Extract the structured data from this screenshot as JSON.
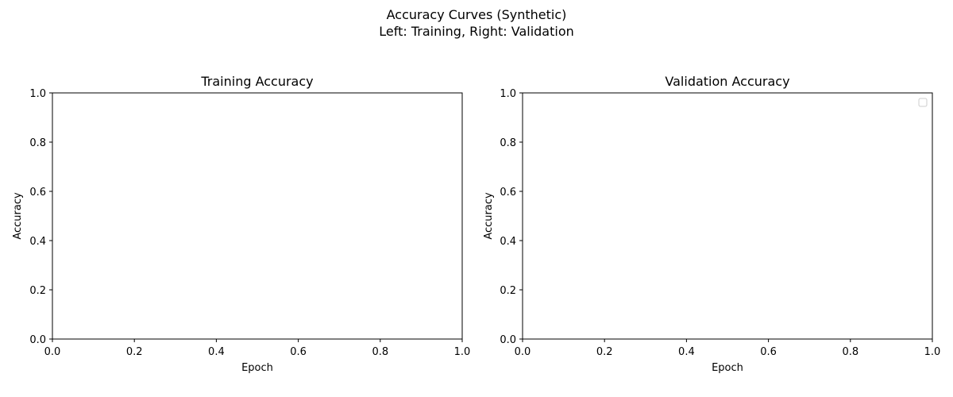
{
  "figure": {
    "suptitle_line1": "Accuracy Curves (Synthetic)",
    "suptitle_line2": "Left: Training, Right: Validation"
  },
  "chart_data": [
    {
      "type": "line",
      "title": "Training Accuracy",
      "xlabel": "Epoch",
      "ylabel": "Accuracy",
      "xlim": [
        0,
        1
      ],
      "ylim": [
        0,
        1
      ],
      "xticks": [
        "0.0",
        "0.2",
        "0.4",
        "0.6",
        "0.8",
        "1.0"
      ],
      "yticks": [
        "0.0",
        "0.2",
        "0.4",
        "0.6",
        "0.8",
        "1.0"
      ],
      "series": [],
      "legend": null,
      "grid": false
    },
    {
      "type": "line",
      "title": "Validation Accuracy",
      "xlabel": "Epoch",
      "ylabel": "Accuracy",
      "xlim": [
        0,
        1
      ],
      "ylim": [
        0,
        1
      ],
      "xticks": [
        "0.0",
        "0.2",
        "0.4",
        "0.6",
        "0.8",
        "1.0"
      ],
      "yticks": [
        "0.0",
        "0.2",
        "0.4",
        "0.6",
        "0.8",
        "1.0"
      ],
      "series": [],
      "legend": "top-right",
      "grid": false
    }
  ]
}
